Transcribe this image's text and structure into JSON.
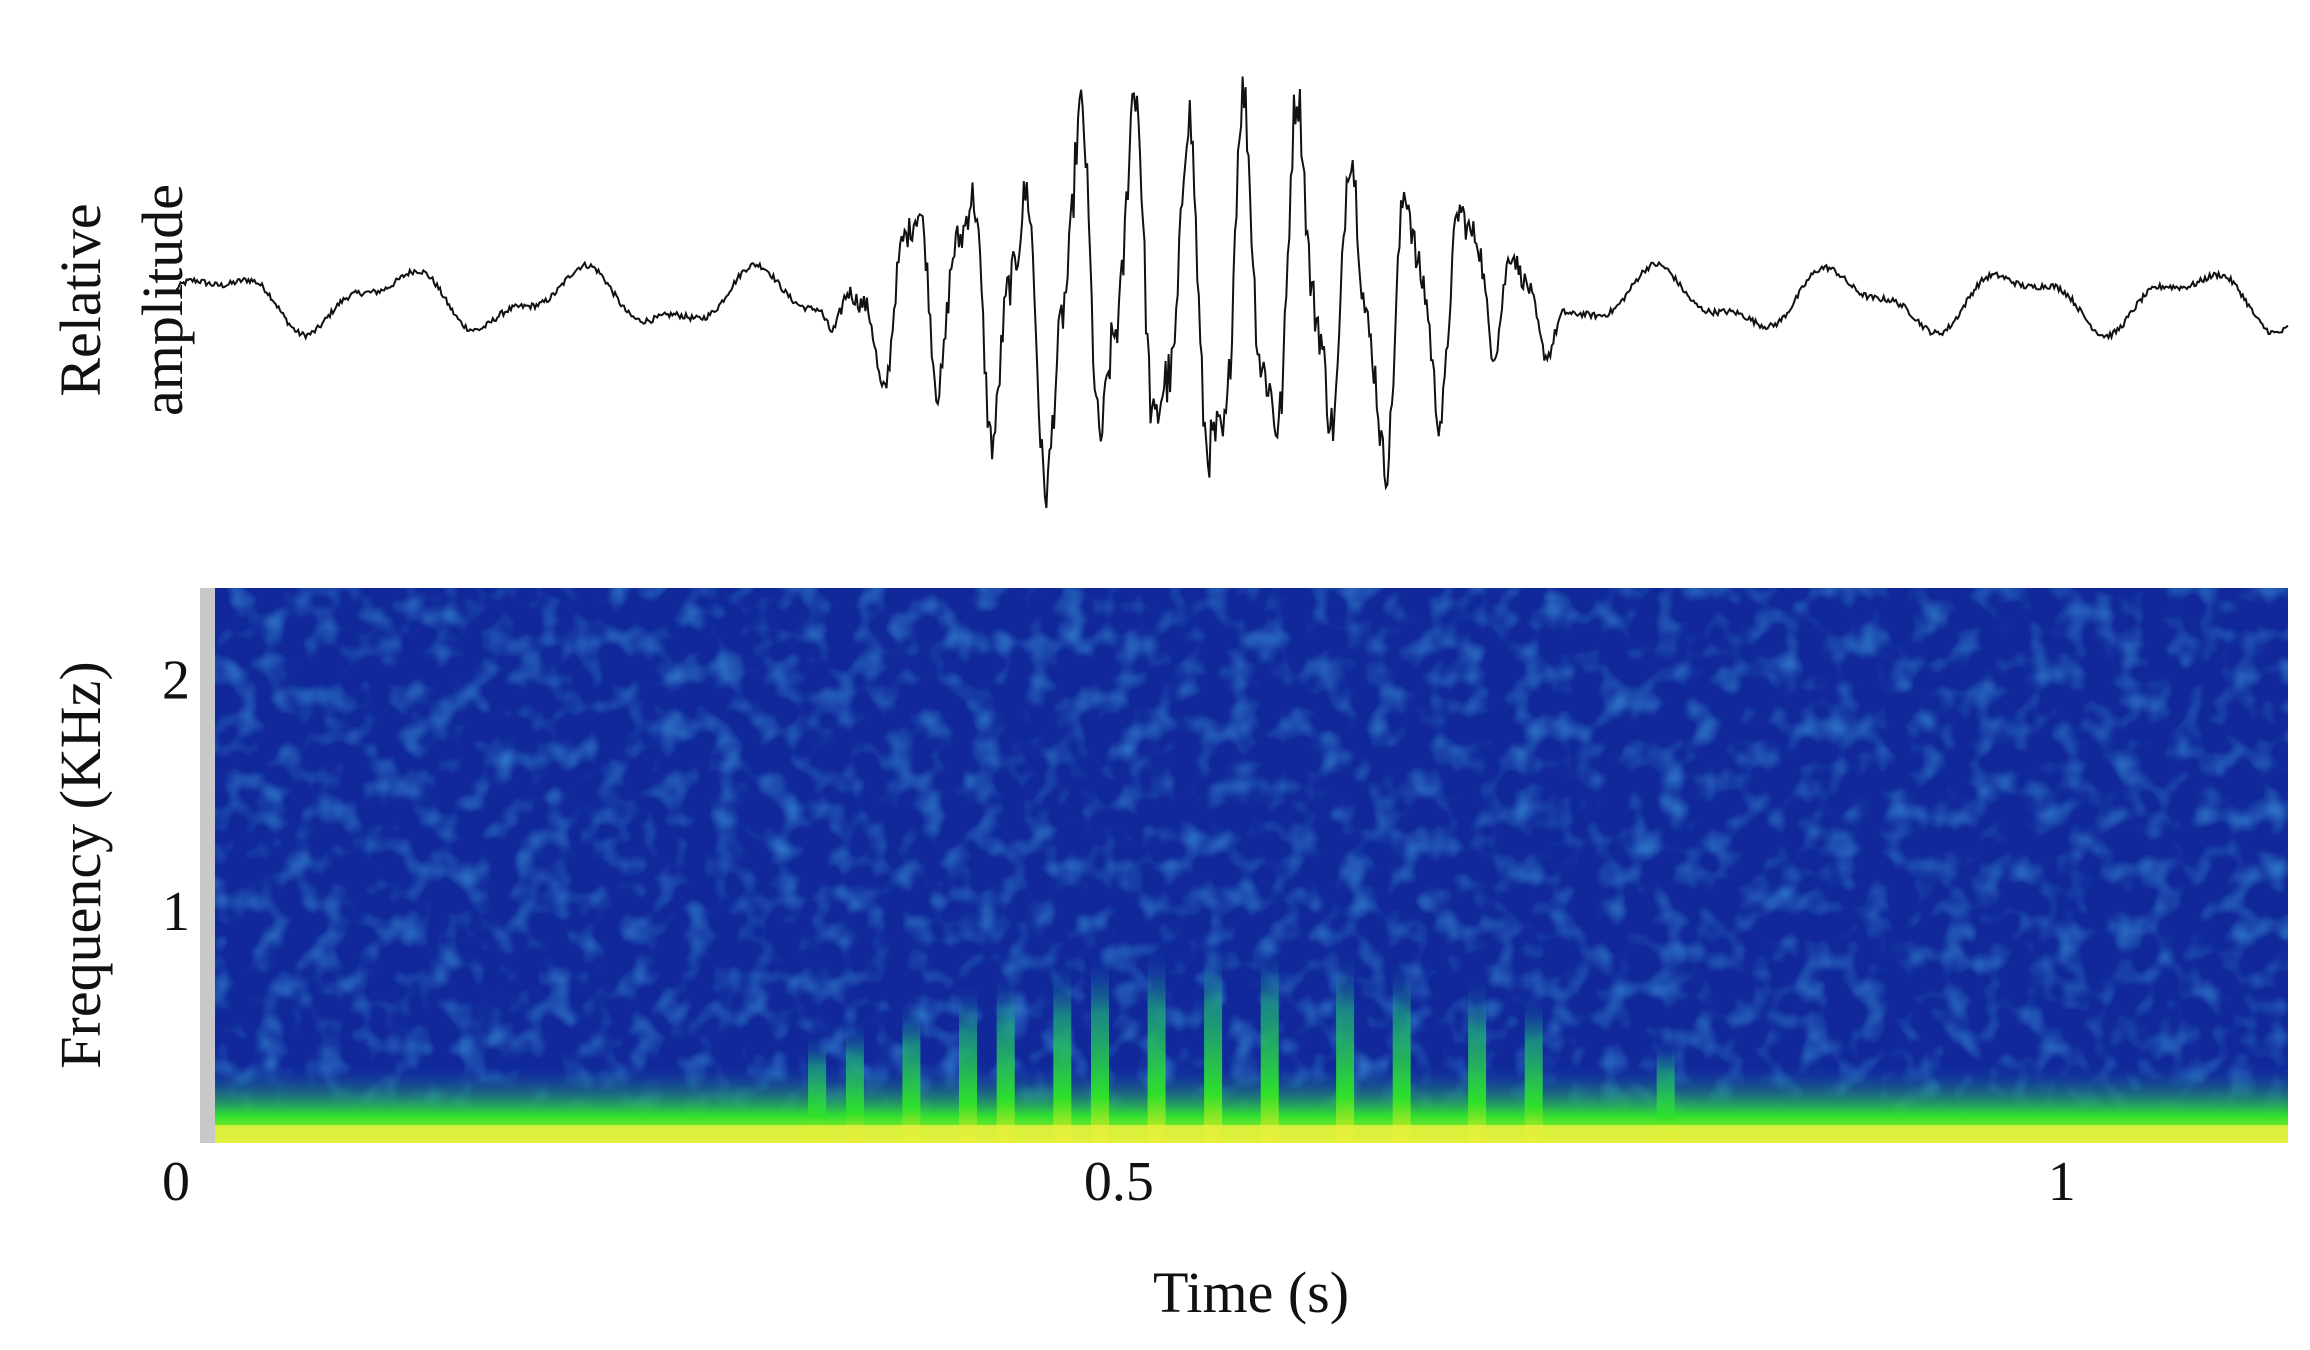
{
  "chart_data": [
    {
      "type": "line",
      "title": "",
      "ylabel": [
        "Relative",
        "amplitude"
      ],
      "xlabel": "",
      "xlim": [
        0,
        1.12
      ],
      "ylim": [
        -1,
        1
      ],
      "signal_events": {
        "background_end": 0.34,
        "burst_start": 0.34,
        "burst_peak": 0.56,
        "burst_end": 0.74
      }
    },
    {
      "type": "heatmap",
      "title": "",
      "xlabel": "Time (s)",
      "ylabel": "Frequency (KHz)",
      "xlim": [
        0,
        1.12
      ],
      "ylim": [
        0,
        2.4
      ],
      "x_ticks": [
        {
          "value": 0,
          "label": "0"
        },
        {
          "value": 0.5,
          "label": "0.5"
        },
        {
          "value": 1,
          "label": "1"
        }
      ],
      "y_ticks": [
        {
          "value": 1,
          "label": "1"
        },
        {
          "value": 2,
          "label": "2"
        }
      ],
      "colormap": [
        "#0a1d8a",
        "#1544b8",
        "#1f9aa6",
        "#28e02a",
        "#f0f020",
        "#ffffff"
      ],
      "harmonic_stripes_s": [
        0.34,
        0.36,
        0.39,
        0.42,
        0.44,
        0.47,
        0.49,
        0.52,
        0.55,
        0.58,
        0.62,
        0.65,
        0.69,
        0.72,
        0.79
      ],
      "dominant_frequency_khz": 0.05
    }
  ]
}
